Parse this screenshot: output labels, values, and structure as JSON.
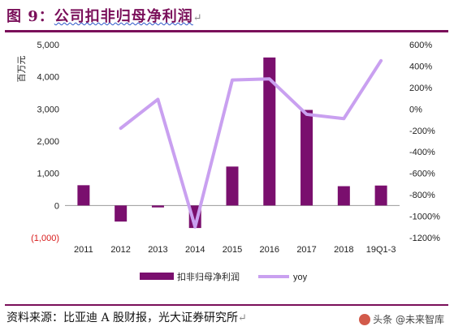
{
  "header": {
    "title_prefix": "图 9：",
    "title_main": "公司扣非归母净利润",
    "return_mark": "↵"
  },
  "footer": {
    "source": "资料来源：比亚迪 A 股财报，光大证券研究所",
    "return_mark": "↵",
    "watermark": "头条 @未来智库"
  },
  "chart_data": {
    "type": "bar",
    "categories": [
      "2011",
      "2012",
      "2013",
      "2014",
      "2015",
      "2016",
      "2017",
      "2018",
      "19Q1-3"
    ],
    "series": [
      {
        "name": "扣非归母净利润",
        "type": "bar",
        "axis": "left",
        "color": "#7a0f6e",
        "values": [
          630,
          -500,
          -60,
          -700,
          1210,
          4600,
          2970,
          600,
          620
        ]
      },
      {
        "name": "yoy",
        "type": "line",
        "axis": "right",
        "color": "#c9a0f0",
        "values": [
          null,
          -180,
          90,
          -1100,
          270,
          280,
          -50,
          -90,
          450
        ]
      }
    ],
    "ylabel": "百万元",
    "ylim": [
      -1000,
      5000
    ],
    "yticks": [
      "(1,000)",
      "0",
      "1,000",
      "2,000",
      "3,000",
      "4,000",
      "5,000"
    ],
    "yticks_values": [
      -1000,
      0,
      1000,
      2000,
      3000,
      4000,
      5000
    ],
    "y2lim": [
      -1200,
      600
    ],
    "y2ticks": [
      "-1200%",
      "-1000%",
      "-800%",
      "-600%",
      "-400%",
      "-200%",
      "0%",
      "200%",
      "400%",
      "600%"
    ],
    "y2ticks_values": [
      -1200,
      -1000,
      -800,
      -600,
      -400,
      -200,
      0,
      200,
      400,
      600
    ],
    "legend_position": "bottom",
    "grid": false
  }
}
